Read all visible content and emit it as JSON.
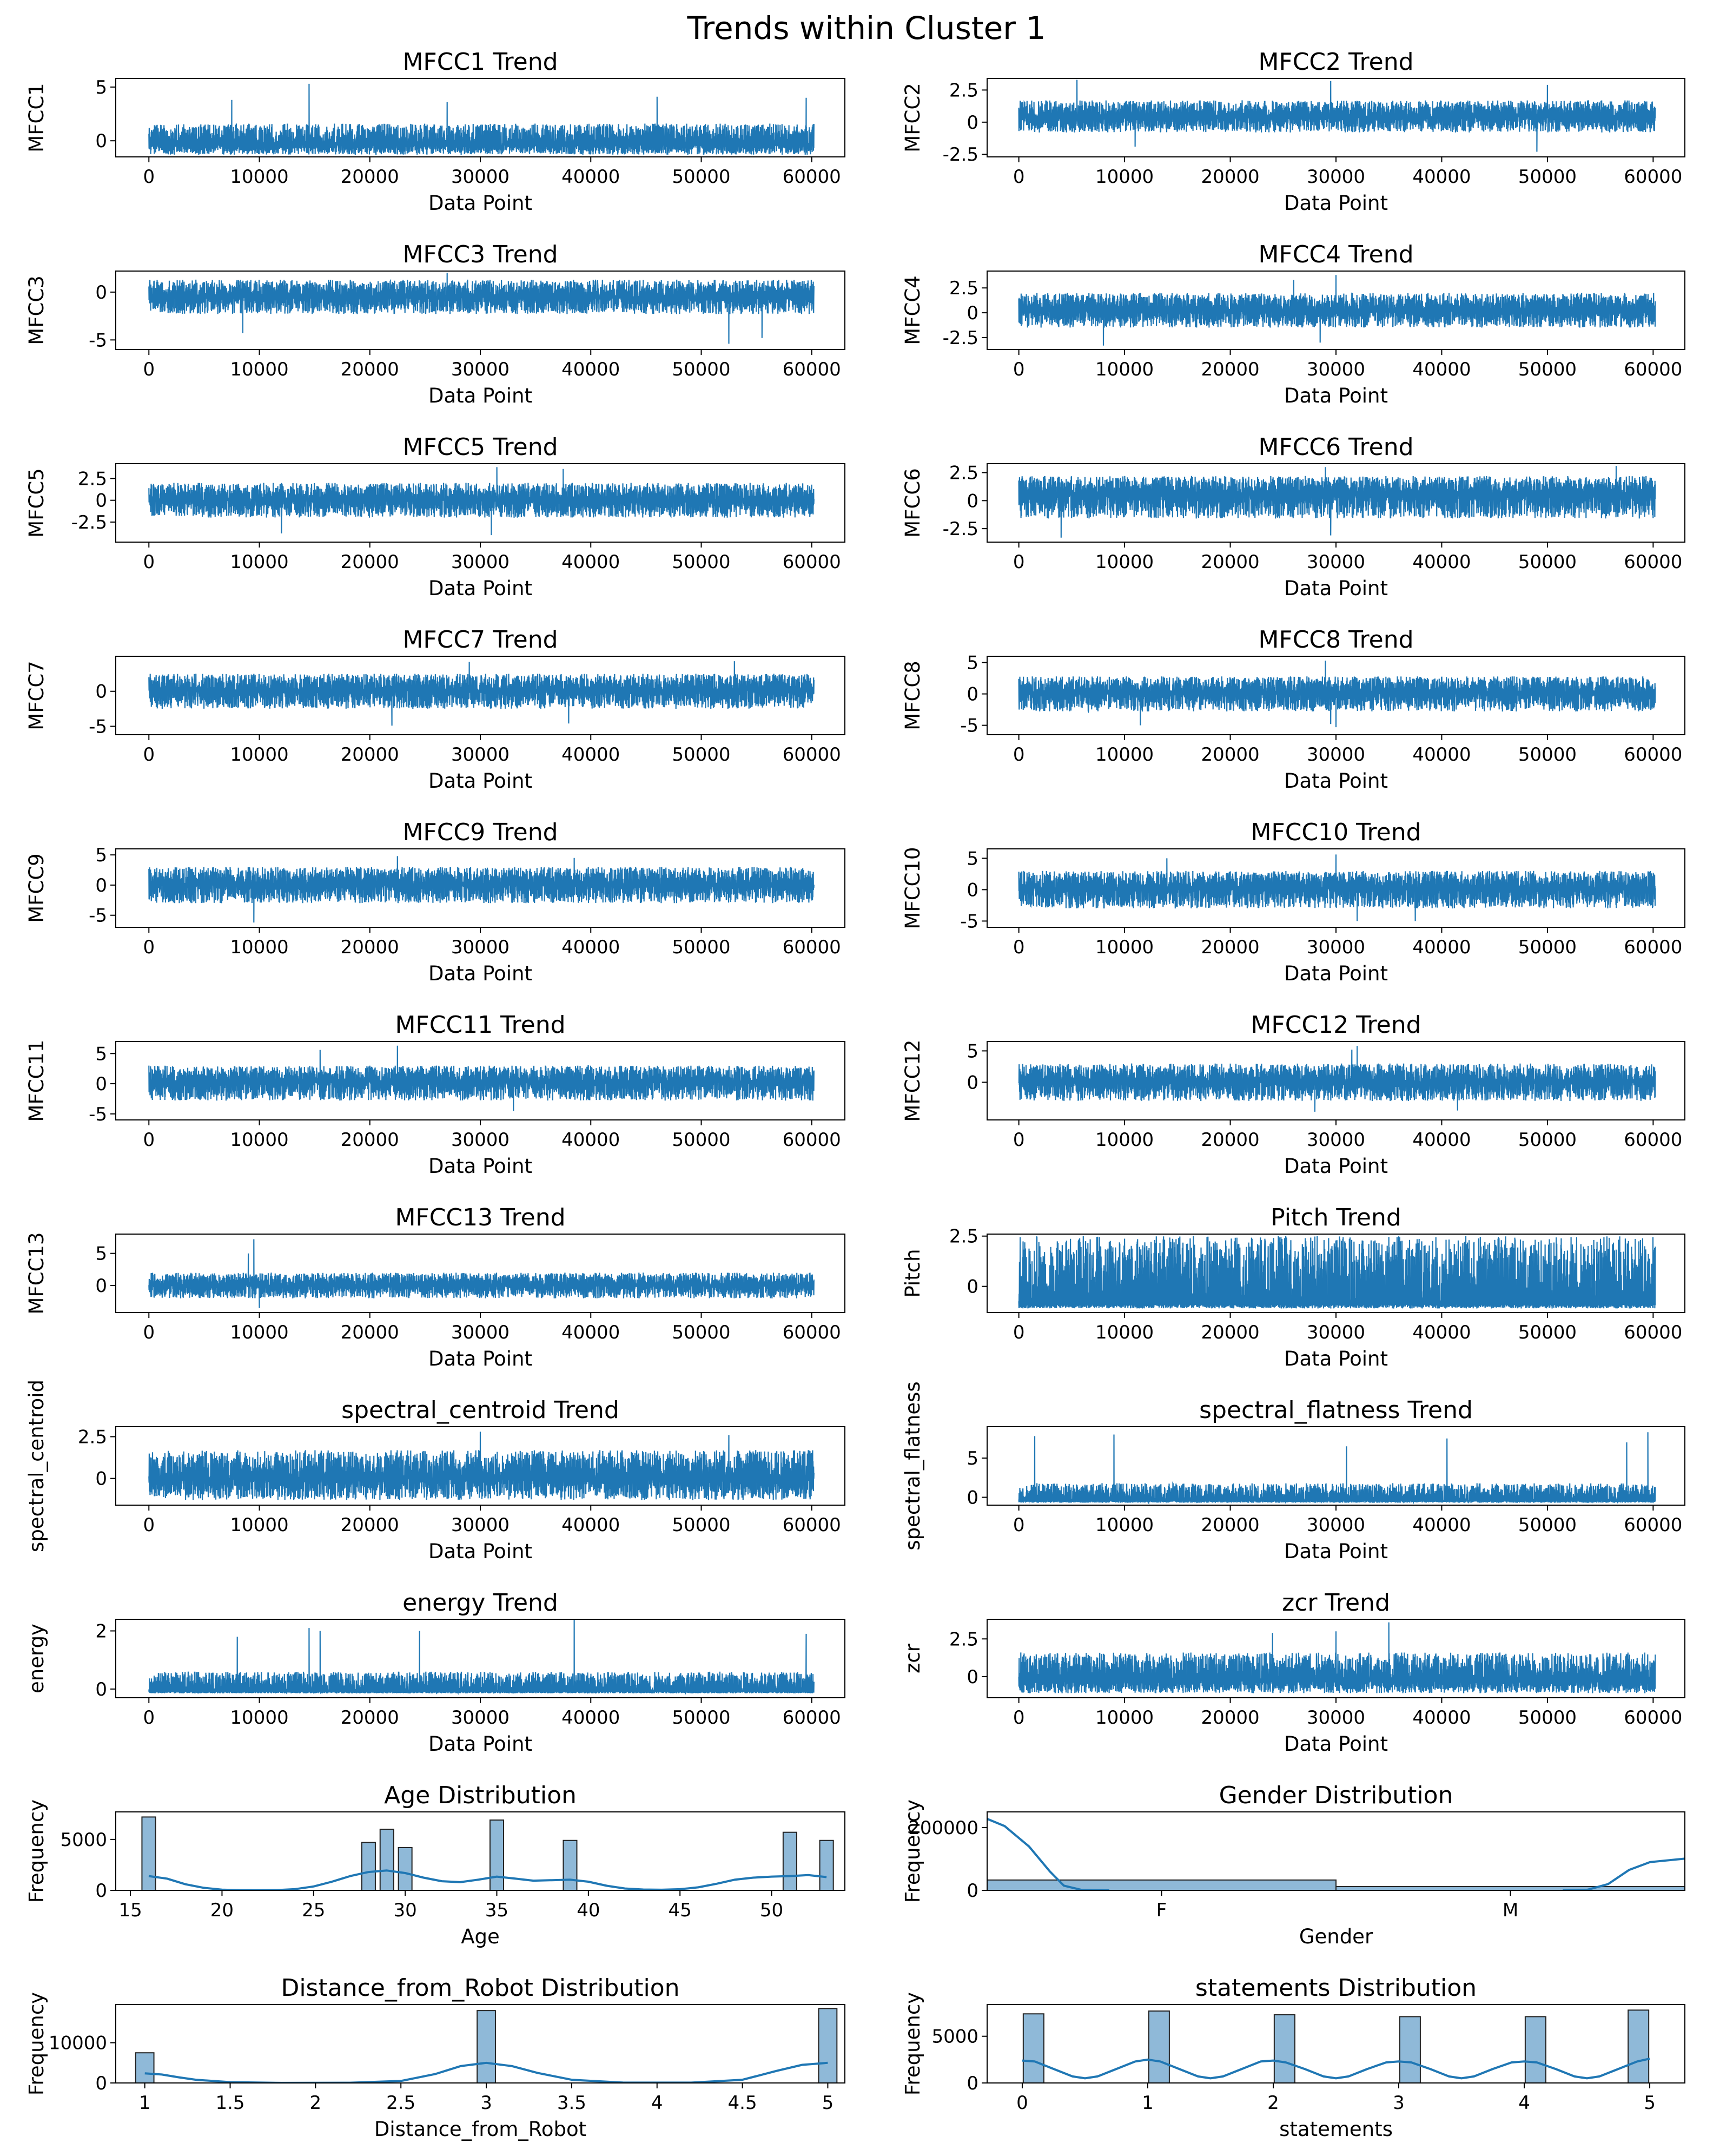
{
  "figure": {
    "title": "Trends within Cluster 1",
    "line_color": "#1f77b4",
    "hist_fill": "#8fb9d8",
    "hist_edge": "#222222"
  },
  "chart_data": [
    {
      "type": "line",
      "title": "MFCC1 Trend",
      "xlabel": "Data Point",
      "ylabel": "MFCC1",
      "xlim": [
        -3000,
        63000
      ],
      "ylim": [
        -1.5,
        5.8
      ],
      "yticks": [
        5,
        0
      ],
      "xticks": [
        0,
        10000,
        20000,
        30000,
        40000,
        50000,
        60000
      ],
      "n_points": 60200,
      "baseline": -0.4,
      "band": [
        -1.3,
        1.6
      ],
      "spikes": [
        [
          14500,
          5.3
        ],
        [
          7500,
          3.8
        ],
        [
          46000,
          4.1
        ],
        [
          59500,
          4.0
        ],
        [
          27000,
          3.6
        ]
      ],
      "dips": []
    },
    {
      "type": "line",
      "title": "MFCC2 Trend",
      "xlabel": "Data Point",
      "ylabel": "MFCC2",
      "xlim": [
        -3000,
        63000
      ],
      "ylim": [
        -2.7,
        3.4
      ],
      "yticks": [
        2.5,
        0.0,
        -2.5
      ],
      "xticks": [
        0,
        10000,
        20000,
        30000,
        40000,
        50000,
        60000
      ],
      "n_points": 60200,
      "baseline": 0.4,
      "band": [
        -0.8,
        1.7
      ],
      "spikes": [
        [
          5500,
          3.3
        ],
        [
          29500,
          3.2
        ],
        [
          50000,
          2.9
        ]
      ],
      "dips": [
        [
          11000,
          -1.9
        ],
        [
          49000,
          -2.3
        ]
      ]
    },
    {
      "type": "line",
      "title": "MFCC3 Trend",
      "xlabel": "Data Point",
      "ylabel": "MFCC3",
      "xlim": [
        -3000,
        63000
      ],
      "ylim": [
        -6.0,
        2.2
      ],
      "yticks": [
        0,
        -5
      ],
      "xticks": [
        0,
        10000,
        20000,
        30000,
        40000,
        50000,
        60000
      ],
      "n_points": 60200,
      "baseline": -0.5,
      "band": [
        -2.3,
        1.3
      ],
      "spikes": [
        [
          27000,
          2.0
        ]
      ],
      "dips": [
        [
          52500,
          -5.4
        ],
        [
          8500,
          -4.3
        ],
        [
          55500,
          -4.8
        ]
      ]
    },
    {
      "type": "line",
      "title": "MFCC4 Trend",
      "xlabel": "Data Point",
      "ylabel": "MFCC4",
      "xlim": [
        -3000,
        63000
      ],
      "ylim": [
        -3.7,
        4.2
      ],
      "yticks": [
        2.5,
        0.0,
        -2.5
      ],
      "xticks": [
        0,
        10000,
        20000,
        30000,
        40000,
        50000,
        60000
      ],
      "n_points": 60200,
      "baseline": 0.2,
      "band": [
        -1.5,
        2.0
      ],
      "spikes": [
        [
          30000,
          3.8
        ],
        [
          26000,
          3.3
        ]
      ],
      "dips": [
        [
          8000,
          -3.3
        ],
        [
          28500,
          -3.0
        ]
      ]
    },
    {
      "type": "line",
      "title": "MFCC5 Trend",
      "xlabel": "Data Point",
      "ylabel": "MFCC5",
      "xlim": [
        -3000,
        63000
      ],
      "ylim": [
        -4.8,
        4.2
      ],
      "yticks": [
        2.5,
        0.0,
        -2.5
      ],
      "xticks": [
        0,
        10000,
        20000,
        30000,
        40000,
        50000,
        60000
      ],
      "n_points": 60200,
      "baseline": 0.0,
      "band": [
        -2.0,
        2.0
      ],
      "spikes": [
        [
          31500,
          3.8
        ],
        [
          37500,
          3.6
        ]
      ],
      "dips": [
        [
          12000,
          -3.8
        ],
        [
          31000,
          -4.0
        ]
      ]
    },
    {
      "type": "line",
      "title": "MFCC6 Trend",
      "xlabel": "Data Point",
      "ylabel": "MFCC6",
      "xlim": [
        -3000,
        63000
      ],
      "ylim": [
        -3.7,
        3.3
      ],
      "yticks": [
        2.5,
        0.0,
        -2.5
      ],
      "xticks": [
        0,
        10000,
        20000,
        30000,
        40000,
        50000,
        60000
      ],
      "n_points": 60200,
      "baseline": 0.6,
      "band": [
        -1.6,
        2.2
      ],
      "spikes": [
        [
          29000,
          3.0
        ],
        [
          56500,
          3.1
        ]
      ],
      "dips": [
        [
          4000,
          -3.3
        ],
        [
          29500,
          -3.1
        ]
      ]
    },
    {
      "type": "line",
      "title": "MFCC7 Trend",
      "xlabel": "Data Point",
      "ylabel": "MFCC7",
      "xlim": [
        -3000,
        63000
      ],
      "ylim": [
        -6.2,
        5.0
      ],
      "yticks": [
        0,
        -5
      ],
      "xticks": [
        0,
        10000,
        20000,
        30000,
        40000,
        50000,
        60000
      ],
      "n_points": 60200,
      "baseline": 0.1,
      "band": [
        -2.5,
        2.5
      ],
      "spikes": [
        [
          29000,
          4.2
        ],
        [
          53000,
          4.3
        ]
      ],
      "dips": [
        [
          22000,
          -4.9
        ],
        [
          38000,
          -4.6
        ]
      ]
    },
    {
      "type": "line",
      "title": "MFCC8 Trend",
      "xlabel": "Data Point",
      "ylabel": "MFCC8",
      "xlim": [
        -3000,
        63000
      ],
      "ylim": [
        -6.5,
        6.0
      ],
      "yticks": [
        5,
        0,
        -5
      ],
      "xticks": [
        0,
        10000,
        20000,
        30000,
        40000,
        50000,
        60000
      ],
      "n_points": 60200,
      "baseline": 0.2,
      "band": [
        -2.8,
        2.8
      ],
      "spikes": [
        [
          29000,
          5.3
        ]
      ],
      "dips": [
        [
          11500,
          -5.0
        ],
        [
          30000,
          -5.3
        ],
        [
          29500,
          -4.8
        ]
      ]
    },
    {
      "type": "line",
      "title": "MFCC9 Trend",
      "xlabel": "Data Point",
      "ylabel": "MFCC9",
      "xlim": [
        -3000,
        63000
      ],
      "ylim": [
        -7.0,
        6.0
      ],
      "yticks": [
        5,
        0,
        -5
      ],
      "xticks": [
        0,
        10000,
        20000,
        30000,
        40000,
        50000,
        60000
      ],
      "n_points": 60200,
      "baseline": 0.0,
      "band": [
        -3.0,
        3.0
      ],
      "spikes": [
        [
          22500,
          4.8
        ],
        [
          38500,
          4.5
        ]
      ],
      "dips": [
        [
          9500,
          -6.2
        ]
      ]
    },
    {
      "type": "line",
      "title": "MFCC10 Trend",
      "xlabel": "Data Point",
      "ylabel": "MFCC10",
      "xlim": [
        -3000,
        63000
      ],
      "ylim": [
        -6.0,
        6.5
      ],
      "yticks": [
        5,
        0,
        -5
      ],
      "xticks": [
        0,
        10000,
        20000,
        30000,
        40000,
        50000,
        60000
      ],
      "n_points": 60200,
      "baseline": 0.2,
      "band": [
        -3.0,
        3.0
      ],
      "spikes": [
        [
          30000,
          5.6
        ],
        [
          14000,
          5.0
        ]
      ],
      "dips": [
        [
          32000,
          -5.0
        ],
        [
          37500,
          -5.0
        ]
      ]
    },
    {
      "type": "line",
      "title": "MFCC11 Trend",
      "xlabel": "Data Point",
      "ylabel": "MFCC11",
      "xlim": [
        -3000,
        63000
      ],
      "ylim": [
        -6.0,
        7.0
      ],
      "yticks": [
        5,
        0,
        -5
      ],
      "xticks": [
        0,
        10000,
        20000,
        30000,
        40000,
        50000,
        60000
      ],
      "n_points": 60200,
      "baseline": 0.3,
      "band": [
        -2.8,
        3.0
      ],
      "spikes": [
        [
          22500,
          6.3
        ],
        [
          15500,
          5.6
        ]
      ],
      "dips": [
        [
          33000,
          -4.5
        ]
      ]
    },
    {
      "type": "line",
      "title": "MFCC12 Trend",
      "xlabel": "Data Point",
      "ylabel": "MFCC12",
      "xlim": [
        -3000,
        63000
      ],
      "ylim": [
        -6.0,
        6.5
      ],
      "yticks": [
        5,
        0
      ],
      "xticks": [
        0,
        10000,
        20000,
        30000,
        40000,
        50000,
        60000
      ],
      "n_points": 60200,
      "baseline": 0.0,
      "band": [
        -3.0,
        3.0
      ],
      "spikes": [
        [
          32000,
          5.8
        ],
        [
          31500,
          5.2
        ]
      ],
      "dips": [
        [
          28000,
          -4.7
        ],
        [
          41500,
          -4.5
        ]
      ]
    },
    {
      "type": "line",
      "title": "MFCC13 Trend",
      "xlabel": "Data Point",
      "ylabel": "MFCC13",
      "xlim": [
        -3000,
        63000
      ],
      "ylim": [
        -4.2,
        8.0
      ],
      "yticks": [
        5,
        0
      ],
      "xticks": [
        0,
        10000,
        20000,
        30000,
        40000,
        50000,
        60000
      ],
      "n_points": 60200,
      "baseline": 0.0,
      "band": [
        -2.0,
        2.0
      ],
      "spikes": [
        [
          9500,
          7.2
        ],
        [
          9000,
          5.0
        ]
      ],
      "dips": [
        [
          10000,
          -3.5
        ]
      ]
    },
    {
      "type": "line",
      "title": "Pitch Trend",
      "xlabel": "Data Point",
      "ylabel": "Pitch",
      "xlim": [
        -3000,
        63000
      ],
      "ylim": [
        -1.3,
        2.6
      ],
      "yticks": [
        2.5,
        0.0
      ],
      "xticks": [
        0,
        10000,
        20000,
        30000,
        40000,
        50000,
        60000
      ],
      "n_points": 60200,
      "baseline": -0.9,
      "band": [
        -1.1,
        2.5
      ],
      "spikes": [],
      "dips": []
    },
    {
      "type": "line",
      "title": "spectral_centroid Trend",
      "xlabel": "Data Point",
      "ylabel": "spectral_centroid",
      "xlim": [
        -3000,
        63000
      ],
      "ylim": [
        -1.6,
        3.1
      ],
      "yticks": [
        2.5,
        0.0
      ],
      "xticks": [
        0,
        10000,
        20000,
        30000,
        40000,
        50000,
        60000
      ],
      "n_points": 60200,
      "baseline": 0.0,
      "band": [
        -1.3,
        1.7
      ],
      "spikes": [
        [
          30000,
          2.8
        ],
        [
          52500,
          2.6
        ]
      ],
      "dips": []
    },
    {
      "type": "line",
      "title": "spectral_flatness Trend",
      "xlabel": "Data Point",
      "ylabel": "spectral_flatness",
      "xlim": [
        -3000,
        63000
      ],
      "ylim": [
        -1.0,
        9.0
      ],
      "yticks": [
        5,
        0
      ],
      "xticks": [
        0,
        10000,
        20000,
        30000,
        40000,
        50000,
        60000
      ],
      "n_points": 60200,
      "baseline": -0.5,
      "band": [
        -0.7,
        1.8
      ],
      "spikes": [
        [
          1500,
          7.8
        ],
        [
          9000,
          8.0
        ],
        [
          59500,
          8.3
        ],
        [
          40500,
          7.5
        ],
        [
          31000,
          6.5
        ],
        [
          57500,
          7.0
        ]
      ],
      "dips": []
    },
    {
      "type": "line",
      "title": "energy Trend",
      "xlabel": "Data Point",
      "ylabel": "energy",
      "xlim": [
        -3000,
        63000
      ],
      "ylim": [
        -0.3,
        2.4
      ],
      "yticks": [
        2,
        0
      ],
      "xticks": [
        0,
        10000,
        20000,
        30000,
        40000,
        50000,
        60000
      ],
      "n_points": 60200,
      "baseline": -0.1,
      "band": [
        -0.15,
        0.6
      ],
      "spikes": [
        [
          38500,
          2.4
        ],
        [
          24500,
          2.0
        ],
        [
          14500,
          2.1
        ],
        [
          15500,
          2.0
        ],
        [
          59500,
          1.9
        ],
        [
          8000,
          1.8
        ]
      ],
      "dips": []
    },
    {
      "type": "line",
      "title": "zcr Trend",
      "xlabel": "Data Point",
      "ylabel": "zcr",
      "xlim": [
        -3000,
        63000
      ],
      "ylim": [
        -1.4,
        3.8
      ],
      "yticks": [
        2.5,
        0.0
      ],
      "xticks": [
        0,
        10000,
        20000,
        30000,
        40000,
        50000,
        60000
      ],
      "n_points": 60200,
      "baseline": -0.3,
      "band": [
        -1.1,
        1.6
      ],
      "spikes": [
        [
          35000,
          3.6
        ],
        [
          30000,
          3.0
        ],
        [
          24000,
          2.9
        ]
      ],
      "dips": []
    },
    {
      "type": "histogram",
      "title": "Age Distribution",
      "xlabel": "Age",
      "ylabel": "Frequency",
      "xlim": [
        14.2,
        54.0
      ],
      "ylim": [
        0,
        7700
      ],
      "xticks": [
        15,
        20,
        25,
        30,
        35,
        40,
        45,
        50
      ],
      "yticks": [
        5000,
        0
      ],
      "bins": [
        [
          16,
          7200
        ],
        [
          28,
          4700
        ],
        [
          29,
          6000
        ],
        [
          30,
          4200
        ],
        [
          35,
          6900
        ],
        [
          39,
          4900
        ],
        [
          51,
          5700
        ],
        [
          53,
          4900
        ]
      ],
      "bin_width": 0.74,
      "kde_x": [
        16,
        17,
        18,
        19,
        20,
        21,
        22,
        23,
        24,
        25,
        26,
        27,
        28,
        29,
        30,
        31,
        32,
        33,
        34,
        35,
        36,
        37,
        38,
        39,
        40,
        41,
        42,
        43,
        44,
        45,
        46,
        47,
        48,
        49,
        50,
        51,
        52,
        53
      ],
      "kde_y": [
        1400,
        1150,
        600,
        250,
        70,
        20,
        10,
        25,
        120,
        380,
        850,
        1400,
        1800,
        1950,
        1700,
        1250,
        900,
        800,
        1050,
        1350,
        1150,
        950,
        1000,
        1050,
        850,
        450,
        180,
        80,
        60,
        110,
        300,
        650,
        1050,
        1250,
        1350,
        1400,
        1500,
        1300
      ]
    },
    {
      "type": "histogram",
      "title": "Gender Distribution",
      "xlabel": "Gender",
      "ylabel": "Frequency",
      "categories": [
        "F",
        "M"
      ],
      "ylim": [
        0,
        250000
      ],
      "yticks": [
        200000,
        0
      ],
      "values": [
        33000,
        12000
      ],
      "kde_segments": [
        [
          [
            0,
            228000
          ],
          [
            0.05,
            205000
          ],
          [
            0.12,
            140000
          ],
          [
            0.18,
            60000
          ],
          [
            0.22,
            15000
          ],
          [
            0.27,
            1500
          ],
          [
            0.35,
            0
          ]
        ],
        [
          [
            1.65,
            0
          ],
          [
            1.72,
            1500
          ],
          [
            1.78,
            20000
          ],
          [
            1.84,
            65000
          ],
          [
            1.9,
            90000
          ],
          [
            2.0,
            101000
          ]
        ]
      ]
    },
    {
      "type": "histogram",
      "title": "Distance_from_Robot Distribution",
      "xlabel": "Distance_from_Robot",
      "ylabel": "Frequency",
      "xlim": [
        0.83,
        5.1
      ],
      "ylim": [
        0,
        19500
      ],
      "xticks": [
        1.0,
        1.5,
        2.0,
        2.5,
        3.0,
        3.5,
        4.0,
        4.5,
        5.0
      ],
      "yticks": [
        10000,
        0
      ],
      "bins": [
        [
          1.0,
          7500
        ],
        [
          3.0,
          18000
        ],
        [
          5.0,
          18500
        ]
      ],
      "bin_width": 0.107,
      "kde_x": [
        1.0,
        1.1,
        1.2,
        1.3,
        1.5,
        1.8,
        2.2,
        2.5,
        2.7,
        2.85,
        3.0,
        3.15,
        3.3,
        3.5,
        3.8,
        4.2,
        4.5,
        4.7,
        4.85,
        5.0
      ],
      "kde_y": [
        2400,
        2100,
        1400,
        800,
        200,
        20,
        50,
        500,
        2200,
        4200,
        5000,
        4200,
        2500,
        800,
        100,
        80,
        800,
        3000,
        4500,
        5000
      ]
    },
    {
      "type": "histogram",
      "title": "statements Distribution",
      "xlabel": "statements",
      "ylabel": "Frequency",
      "xlim": [
        -0.28,
        5.28
      ],
      "ylim": [
        0,
        8400
      ],
      "xticks": [
        0,
        1,
        2,
        3,
        4,
        5
      ],
      "yticks": [
        5000,
        0
      ],
      "bins": [
        [
          0.09,
          7400
        ],
        [
          1.09,
          7700
        ],
        [
          2.09,
          7300
        ],
        [
          3.09,
          7100
        ],
        [
          4.09,
          7100
        ],
        [
          4.91,
          7800
        ]
      ],
      "bin_width": 0.164,
      "kde_x": [
        0,
        0.1,
        0.25,
        0.4,
        0.5,
        0.6,
        0.75,
        0.9,
        1.0,
        1.1,
        1.25,
        1.4,
        1.5,
        1.6,
        1.75,
        1.9,
        2.0,
        2.1,
        2.25,
        2.4,
        2.5,
        2.6,
        2.75,
        2.9,
        3.0,
        3.1,
        3.25,
        3.4,
        3.5,
        3.6,
        3.75,
        3.9,
        4.0,
        4.1,
        4.25,
        4.4,
        4.5,
        4.6,
        4.75,
        4.9,
        5.0
      ],
      "kde_y": [
        2400,
        2300,
        1500,
        700,
        500,
        700,
        1500,
        2300,
        2500,
        2300,
        1500,
        700,
        500,
        700,
        1500,
        2300,
        2400,
        2200,
        1500,
        700,
        500,
        700,
        1500,
        2200,
        2300,
        2200,
        1500,
        700,
        500,
        700,
        1500,
        2200,
        2300,
        2200,
        1500,
        700,
        500,
        700,
        1500,
        2300,
        2600
      ]
    }
  ]
}
